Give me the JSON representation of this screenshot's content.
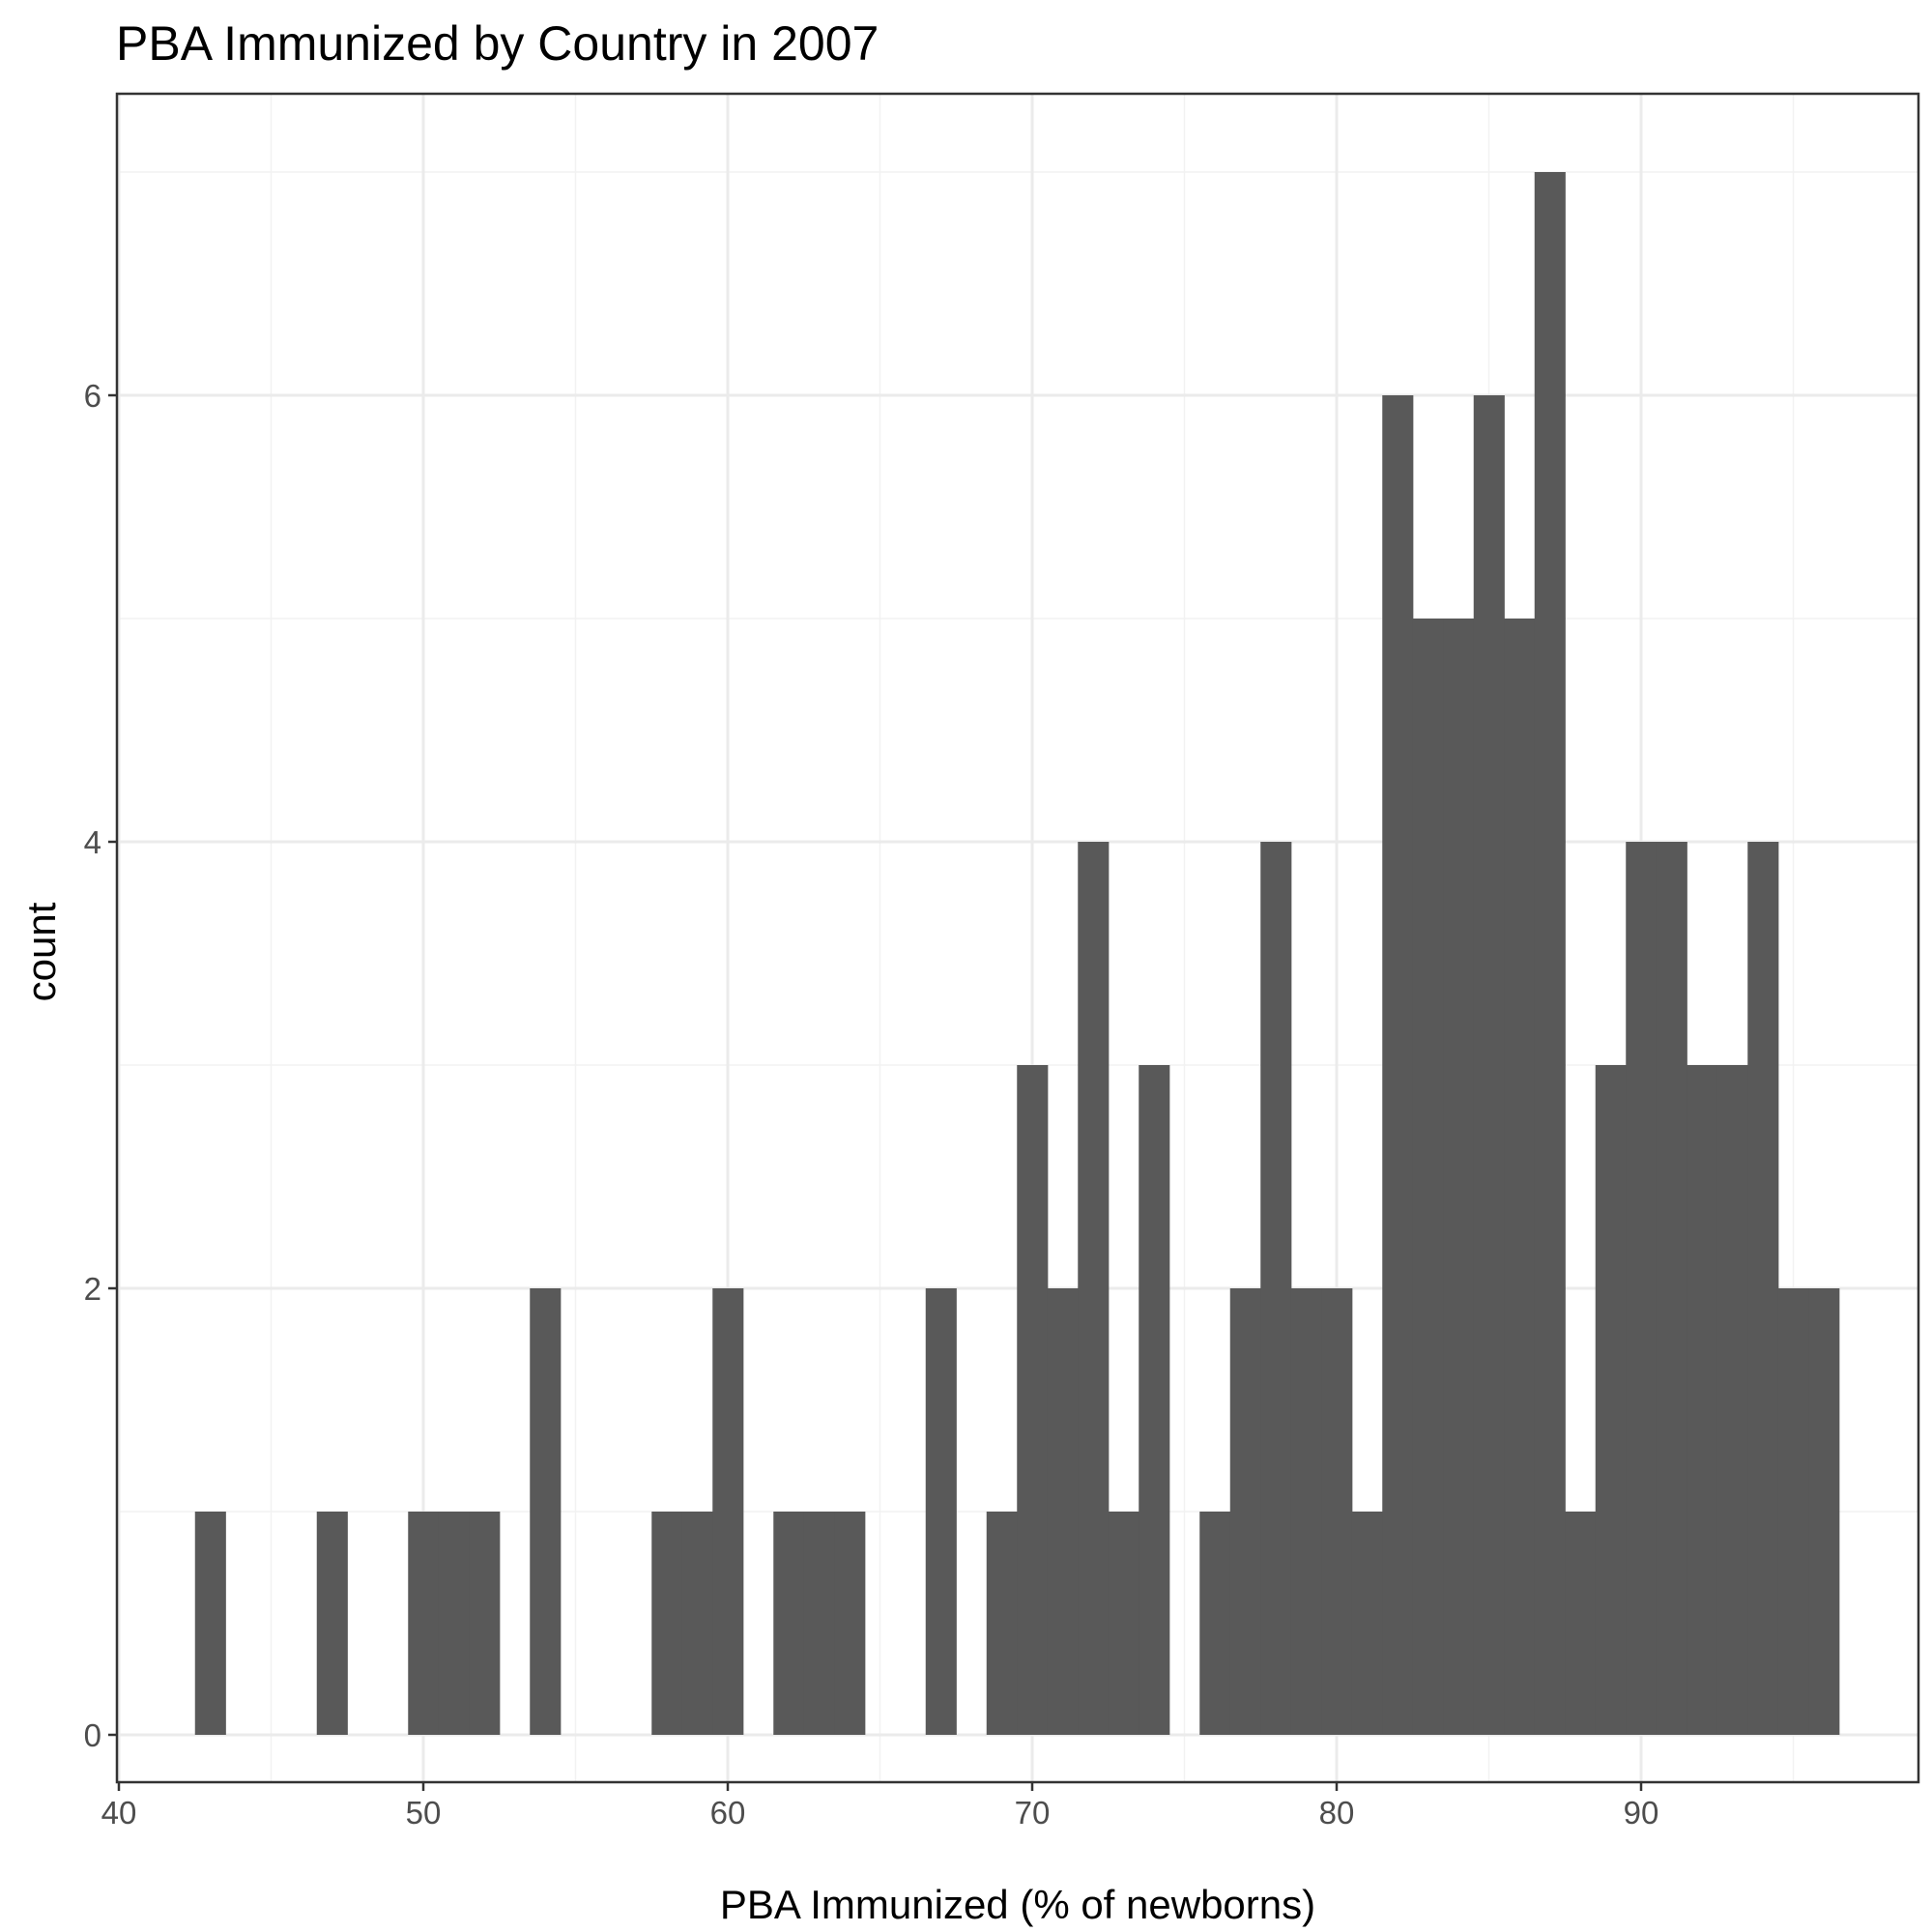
{
  "chart_data": {
    "type": "bar",
    "title": "PBA Immunized by Country in 2007",
    "xlabel": "PBA Immunized (% of newborns)",
    "ylabel": "count",
    "xlim": [
      40,
      98
    ],
    "ylim": [
      -0.35,
      7.35
    ],
    "x_ticks": [
      40,
      50,
      60,
      70,
      80,
      90
    ],
    "y_ticks": [
      0,
      2,
      4,
      6
    ],
    "grid": true,
    "legend": "none",
    "bar_color": "#595959",
    "bin_width": 1,
    "bins": [
      {
        "x0": 42.5,
        "x1": 43.5,
        "count": 1
      },
      {
        "x0": 46.5,
        "x1": 47.5,
        "count": 1
      },
      {
        "x0": 49.5,
        "x1": 50.5,
        "count": 1
      },
      {
        "x0": 50.5,
        "x1": 51.5,
        "count": 1
      },
      {
        "x0": 51.5,
        "x1": 52.5,
        "count": 1
      },
      {
        "x0": 53.5,
        "x1": 54.5,
        "count": 2
      },
      {
        "x0": 57.5,
        "x1": 58.5,
        "count": 1
      },
      {
        "x0": 58.5,
        "x1": 59.5,
        "count": 1
      },
      {
        "x0": 59.5,
        "x1": 60.5,
        "count": 2
      },
      {
        "x0": 61.5,
        "x1": 62.5,
        "count": 1
      },
      {
        "x0": 62.5,
        "x1": 63.5,
        "count": 1
      },
      {
        "x0": 63.5,
        "x1": 64.5,
        "count": 1
      },
      {
        "x0": 66.5,
        "x1": 67.5,
        "count": 2
      },
      {
        "x0": 68.5,
        "x1": 69.5,
        "count": 1
      },
      {
        "x0": 69.5,
        "x1": 70.5,
        "count": 3
      },
      {
        "x0": 70.5,
        "x1": 71.5,
        "count": 2
      },
      {
        "x0": 71.5,
        "x1": 72.5,
        "count": 4
      },
      {
        "x0": 72.5,
        "x1": 73.5,
        "count": 1
      },
      {
        "x0": 73.5,
        "x1": 74.5,
        "count": 3
      },
      {
        "x0": 75.5,
        "x1": 76.5,
        "count": 1
      },
      {
        "x0": 76.5,
        "x1": 77.5,
        "count": 2
      },
      {
        "x0": 77.5,
        "x1": 78.5,
        "count": 4
      },
      {
        "x0": 78.5,
        "x1": 79.5,
        "count": 2
      },
      {
        "x0": 79.5,
        "x1": 80.5,
        "count": 2
      },
      {
        "x0": 80.5,
        "x1": 81.5,
        "count": 1
      },
      {
        "x0": 81.5,
        "x1": 82.5,
        "count": 6
      },
      {
        "x0": 82.5,
        "x1": 83.5,
        "count": 5
      },
      {
        "x0": 83.5,
        "x1": 84.5,
        "count": 5
      },
      {
        "x0": 84.5,
        "x1": 85.5,
        "count": 6
      },
      {
        "x0": 85.5,
        "x1": 86.5,
        "count": 5
      },
      {
        "x0": 86.5,
        "x1": 87.5,
        "count": 7
      },
      {
        "x0": 87.5,
        "x1": 88.5,
        "count": 1
      },
      {
        "x0": 88.5,
        "x1": 89.5,
        "count": 3
      },
      {
        "x0": 89.5,
        "x1": 90.5,
        "count": 4
      },
      {
        "x0": 90.5,
        "x1": 91.5,
        "count": 4
      },
      {
        "x0": 91.5,
        "x1": 92.5,
        "count": 3
      },
      {
        "x0": 92.5,
        "x1": 93.5,
        "count": 3
      },
      {
        "x0": 93.5,
        "x1": 94.5,
        "count": 4
      },
      {
        "x0": 94.5,
        "x1": 95.5,
        "count": 2
      },
      {
        "x0": 95.5,
        "x1": 96.5,
        "count": 2
      }
    ]
  }
}
